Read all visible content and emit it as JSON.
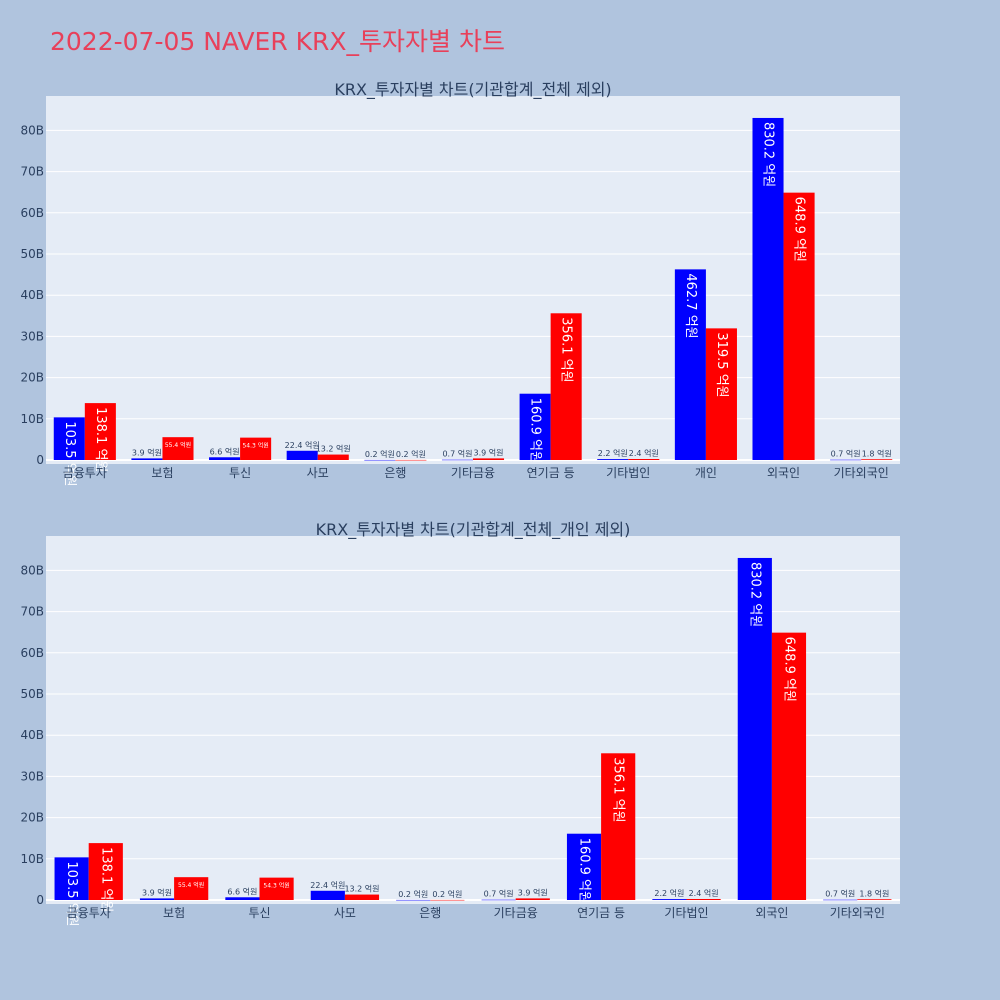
{
  "title": "2022-07-05 NAVER KRX_투자자별 차트",
  "colors": {
    "buy": "#0000ff",
    "sell": "#ff0000",
    "background": "#b0c4de",
    "plot_bg": "#e5ecf6",
    "title": "#e8405a"
  },
  "chart_data": [
    {
      "type": "bar",
      "title": "KRX_투자자별 차트(기관합계_전체 제외)",
      "categories": [
        "금융투자",
        "보험",
        "투신",
        "사모",
        "은행",
        "기타금융",
        "연기금 등",
        "기타법인",
        "개인",
        "외국인",
        "기타외국인"
      ],
      "series": [
        {
          "values": [
            10.35,
            0.39,
            0.66,
            2.24,
            0.02,
            0.07,
            16.09,
            0.22,
            46.27,
            83.02,
            0.07
          ],
          "labels": [
            "103.5 억원",
            "3.9 억원",
            "6.6 억원",
            "22.4 억원",
            "0.2 억원",
            "0.7 억원",
            "160.9 억원",
            "2.2 억원",
            "462.7 억원",
            "830.2 억원",
            "0.7 억원"
          ]
        },
        {
          "values": [
            13.81,
            5.54,
            5.43,
            1.32,
            0.02,
            0.39,
            35.61,
            0.24,
            31.95,
            64.89,
            0.18
          ],
          "labels": [
            "138.1 억원",
            "55.4 억원",
            "54.3 억원",
            "13.2 억원",
            "0.2 억원",
            "3.9 억원",
            "356.1 억원",
            "2.4 억원",
            "319.5 억원",
            "648.9 억원",
            "1.8 억원"
          ]
        }
      ],
      "ylim": [
        0,
        88
      ],
      "yticks": [
        "0",
        "10B",
        "20B",
        "30B",
        "40B",
        "50B",
        "60B",
        "70B",
        "80B"
      ],
      "grid": true
    },
    {
      "type": "bar",
      "title": "KRX_투자자별 차트(기관합계_전체_개인 제외)",
      "categories": [
        "금융투자",
        "보험",
        "투신",
        "사모",
        "은행",
        "기타금융",
        "연기금 등",
        "기타법인",
        "외국인",
        "기타외국인"
      ],
      "series": [
        {
          "values": [
            10.35,
            0.39,
            0.66,
            2.24,
            0.02,
            0.07,
            16.09,
            0.22,
            83.02,
            0.07
          ],
          "labels": [
            "103.5 억원",
            "3.9 억원",
            "6.6 억원",
            "22.4 억원",
            "0.2 억원",
            "0.7 억원",
            "160.9 억원",
            "2.2 억원",
            "830.2 억원",
            "0.7 억원"
          ]
        },
        {
          "values": [
            13.81,
            5.54,
            5.43,
            1.32,
            0.02,
            0.39,
            35.61,
            0.24,
            64.89,
            0.18
          ],
          "labels": [
            "138.1 억원",
            "55.4 억원",
            "54.3 억원",
            "13.2 억원",
            "0.2 억원",
            "3.9 억원",
            "356.1 억원",
            "2.4 억원",
            "648.9 억원",
            "1.8 억원"
          ]
        }
      ],
      "ylim": [
        0,
        88
      ],
      "yticks": [
        "0",
        "10B",
        "20B",
        "30B",
        "40B",
        "50B",
        "60B",
        "70B",
        "80B"
      ],
      "grid": true
    }
  ]
}
